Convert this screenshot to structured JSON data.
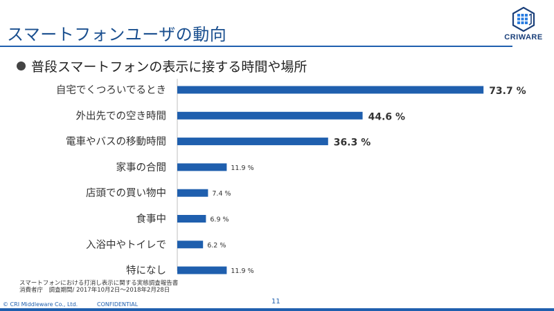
{
  "slide": {
    "title": "スマートフォンユーザの動向",
    "bullet": "普段スマートフォンの表示に接する時間や場所",
    "logo_text": "CRIWARE",
    "source_line1": "スマートフォンにおける打消し表示に関する実態調査報告書",
    "source_line2": "消費者庁　調査期間/ 2017年10月2日〜2018年2月28日",
    "page_number": "11",
    "copyright": "© CRI Middleware Co., Ltd.",
    "confidential": "CONFIDENTIAL",
    "accent_color": "#1f5fae"
  },
  "chart_data": {
    "type": "bar",
    "orientation": "horizontal",
    "categories": [
      "自宅でくつろいでるとき",
      "外出先での空き時間",
      "電車やバスの移動時間",
      "家事の合間",
      "店頭での買い物中",
      "食事中",
      "入浴中やトイレで",
      "特になし"
    ],
    "values": [
      73.7,
      44.6,
      36.3,
      11.9,
      7.4,
      6.9,
      6.2,
      11.9
    ],
    "value_labels": [
      "73.7 %",
      "44.6 %",
      "36.3 %",
      "11.9 %",
      "7.4 %",
      "6.9 %",
      "6.2 %",
      "11.9 %"
    ],
    "xlim": [
      0,
      100
    ],
    "grid": false,
    "bar_color": "#1f5fae"
  }
}
